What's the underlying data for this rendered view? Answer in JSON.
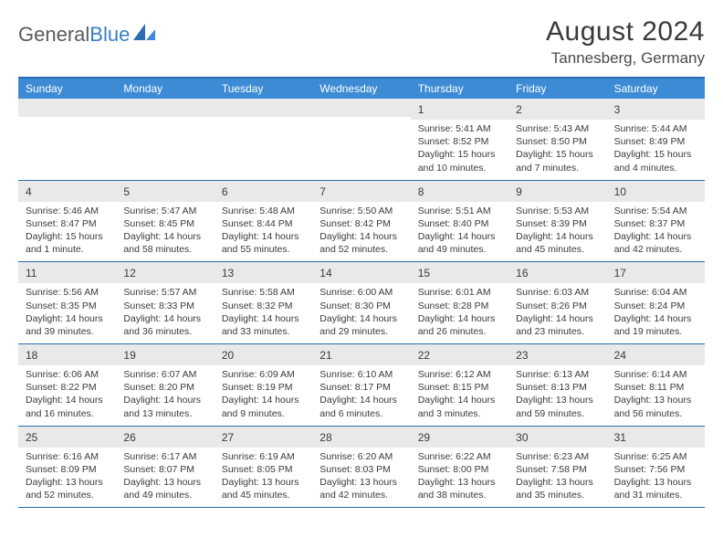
{
  "brand": {
    "part1": "General",
    "part2": "Blue"
  },
  "title": "August 2024",
  "location": "Tannesberg, Germany",
  "colors": {
    "header_bar": "#3d8bd4",
    "border": "#2a6db0",
    "daynum_bg": "#e9e9e9",
    "text": "#3a3a3a",
    "logo_gray": "#5a5a5a",
    "logo_blue": "#3b7fc4",
    "background": "#ffffff"
  },
  "days_of_week": [
    "Sunday",
    "Monday",
    "Tuesday",
    "Wednesday",
    "Thursday",
    "Friday",
    "Saturday"
  ],
  "weeks": [
    [
      null,
      null,
      null,
      null,
      {
        "n": "1",
        "sunrise": "Sunrise: 5:41 AM",
        "sunset": "Sunset: 8:52 PM",
        "dl1": "Daylight: 15 hours",
        "dl2": "and 10 minutes."
      },
      {
        "n": "2",
        "sunrise": "Sunrise: 5:43 AM",
        "sunset": "Sunset: 8:50 PM",
        "dl1": "Daylight: 15 hours",
        "dl2": "and 7 minutes."
      },
      {
        "n": "3",
        "sunrise": "Sunrise: 5:44 AM",
        "sunset": "Sunset: 8:49 PM",
        "dl1": "Daylight: 15 hours",
        "dl2": "and 4 minutes."
      }
    ],
    [
      {
        "n": "4",
        "sunrise": "Sunrise: 5:46 AM",
        "sunset": "Sunset: 8:47 PM",
        "dl1": "Daylight: 15 hours",
        "dl2": "and 1 minute."
      },
      {
        "n": "5",
        "sunrise": "Sunrise: 5:47 AM",
        "sunset": "Sunset: 8:45 PM",
        "dl1": "Daylight: 14 hours",
        "dl2": "and 58 minutes."
      },
      {
        "n": "6",
        "sunrise": "Sunrise: 5:48 AM",
        "sunset": "Sunset: 8:44 PM",
        "dl1": "Daylight: 14 hours",
        "dl2": "and 55 minutes."
      },
      {
        "n": "7",
        "sunrise": "Sunrise: 5:50 AM",
        "sunset": "Sunset: 8:42 PM",
        "dl1": "Daylight: 14 hours",
        "dl2": "and 52 minutes."
      },
      {
        "n": "8",
        "sunrise": "Sunrise: 5:51 AM",
        "sunset": "Sunset: 8:40 PM",
        "dl1": "Daylight: 14 hours",
        "dl2": "and 49 minutes."
      },
      {
        "n": "9",
        "sunrise": "Sunrise: 5:53 AM",
        "sunset": "Sunset: 8:39 PM",
        "dl1": "Daylight: 14 hours",
        "dl2": "and 45 minutes."
      },
      {
        "n": "10",
        "sunrise": "Sunrise: 5:54 AM",
        "sunset": "Sunset: 8:37 PM",
        "dl1": "Daylight: 14 hours",
        "dl2": "and 42 minutes."
      }
    ],
    [
      {
        "n": "11",
        "sunrise": "Sunrise: 5:56 AM",
        "sunset": "Sunset: 8:35 PM",
        "dl1": "Daylight: 14 hours",
        "dl2": "and 39 minutes."
      },
      {
        "n": "12",
        "sunrise": "Sunrise: 5:57 AM",
        "sunset": "Sunset: 8:33 PM",
        "dl1": "Daylight: 14 hours",
        "dl2": "and 36 minutes."
      },
      {
        "n": "13",
        "sunrise": "Sunrise: 5:58 AM",
        "sunset": "Sunset: 8:32 PM",
        "dl1": "Daylight: 14 hours",
        "dl2": "and 33 minutes."
      },
      {
        "n": "14",
        "sunrise": "Sunrise: 6:00 AM",
        "sunset": "Sunset: 8:30 PM",
        "dl1": "Daylight: 14 hours",
        "dl2": "and 29 minutes."
      },
      {
        "n": "15",
        "sunrise": "Sunrise: 6:01 AM",
        "sunset": "Sunset: 8:28 PM",
        "dl1": "Daylight: 14 hours",
        "dl2": "and 26 minutes."
      },
      {
        "n": "16",
        "sunrise": "Sunrise: 6:03 AM",
        "sunset": "Sunset: 8:26 PM",
        "dl1": "Daylight: 14 hours",
        "dl2": "and 23 minutes."
      },
      {
        "n": "17",
        "sunrise": "Sunrise: 6:04 AM",
        "sunset": "Sunset: 8:24 PM",
        "dl1": "Daylight: 14 hours",
        "dl2": "and 19 minutes."
      }
    ],
    [
      {
        "n": "18",
        "sunrise": "Sunrise: 6:06 AM",
        "sunset": "Sunset: 8:22 PM",
        "dl1": "Daylight: 14 hours",
        "dl2": "and 16 minutes."
      },
      {
        "n": "19",
        "sunrise": "Sunrise: 6:07 AM",
        "sunset": "Sunset: 8:20 PM",
        "dl1": "Daylight: 14 hours",
        "dl2": "and 13 minutes."
      },
      {
        "n": "20",
        "sunrise": "Sunrise: 6:09 AM",
        "sunset": "Sunset: 8:19 PM",
        "dl1": "Daylight: 14 hours",
        "dl2": "and 9 minutes."
      },
      {
        "n": "21",
        "sunrise": "Sunrise: 6:10 AM",
        "sunset": "Sunset: 8:17 PM",
        "dl1": "Daylight: 14 hours",
        "dl2": "and 6 minutes."
      },
      {
        "n": "22",
        "sunrise": "Sunrise: 6:12 AM",
        "sunset": "Sunset: 8:15 PM",
        "dl1": "Daylight: 14 hours",
        "dl2": "and 3 minutes."
      },
      {
        "n": "23",
        "sunrise": "Sunrise: 6:13 AM",
        "sunset": "Sunset: 8:13 PM",
        "dl1": "Daylight: 13 hours",
        "dl2": "and 59 minutes."
      },
      {
        "n": "24",
        "sunrise": "Sunrise: 6:14 AM",
        "sunset": "Sunset: 8:11 PM",
        "dl1": "Daylight: 13 hours",
        "dl2": "and 56 minutes."
      }
    ],
    [
      {
        "n": "25",
        "sunrise": "Sunrise: 6:16 AM",
        "sunset": "Sunset: 8:09 PM",
        "dl1": "Daylight: 13 hours",
        "dl2": "and 52 minutes."
      },
      {
        "n": "26",
        "sunrise": "Sunrise: 6:17 AM",
        "sunset": "Sunset: 8:07 PM",
        "dl1": "Daylight: 13 hours",
        "dl2": "and 49 minutes."
      },
      {
        "n": "27",
        "sunrise": "Sunrise: 6:19 AM",
        "sunset": "Sunset: 8:05 PM",
        "dl1": "Daylight: 13 hours",
        "dl2": "and 45 minutes."
      },
      {
        "n": "28",
        "sunrise": "Sunrise: 6:20 AM",
        "sunset": "Sunset: 8:03 PM",
        "dl1": "Daylight: 13 hours",
        "dl2": "and 42 minutes."
      },
      {
        "n": "29",
        "sunrise": "Sunrise: 6:22 AM",
        "sunset": "Sunset: 8:00 PM",
        "dl1": "Daylight: 13 hours",
        "dl2": "and 38 minutes."
      },
      {
        "n": "30",
        "sunrise": "Sunrise: 6:23 AM",
        "sunset": "Sunset: 7:58 PM",
        "dl1": "Daylight: 13 hours",
        "dl2": "and 35 minutes."
      },
      {
        "n": "31",
        "sunrise": "Sunrise: 6:25 AM",
        "sunset": "Sunset: 7:56 PM",
        "dl1": "Daylight: 13 hours",
        "dl2": "and 31 minutes."
      }
    ]
  ]
}
